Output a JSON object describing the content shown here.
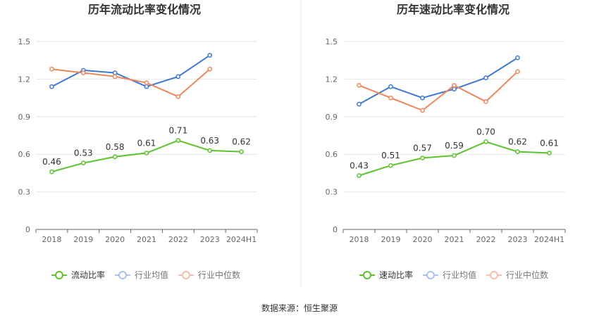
{
  "source_note": "数据来源：恒生聚源",
  "legend_current": "流动比率",
  "legend_quick": "速动比率",
  "legend_avg": "行业均值",
  "legend_median": "行业中位数",
  "colors": {
    "company": "#5bc42b",
    "industry_avg": "#3c78d8",
    "industry_median": "#f0855b",
    "grid": "#e6e6e6",
    "divider": "#e9e9e9"
  },
  "chart_data": [
    {
      "type": "line",
      "title": "历年流动比率变化情况",
      "categories": [
        "2018",
        "2019",
        "2020",
        "2021",
        "2022",
        "2023",
        "2024H1"
      ],
      "yticks": [
        "0",
        "0.3",
        "0.6",
        "0.9",
        "1.2",
        "1.5"
      ],
      "ylim": [
        0,
        1.5
      ],
      "grid": true,
      "legend_position": "bottom",
      "series": [
        {
          "name": "流动比率",
          "color": "#5bc42b",
          "labeled": true,
          "values": [
            0.46,
            0.53,
            0.58,
            0.61,
            0.71,
            0.63,
            0.62
          ],
          "labels": [
            "0.46",
            "0.53",
            "0.58",
            "0.61",
            "0.71",
            "0.63",
            "0.62"
          ]
        },
        {
          "name": "行业均值",
          "color": "#3c78d8",
          "labeled": false,
          "values": [
            1.14,
            1.27,
            1.25,
            1.14,
            1.22,
            1.39,
            null
          ]
        },
        {
          "name": "行业中位数",
          "color": "#f0855b",
          "labeled": false,
          "values": [
            1.28,
            1.25,
            1.22,
            1.17,
            1.06,
            1.28,
            null
          ]
        }
      ]
    },
    {
      "type": "line",
      "title": "历年速动比率变化情况",
      "categories": [
        "2018",
        "2019",
        "2020",
        "2021",
        "2022",
        "2023",
        "2024H1"
      ],
      "yticks": [
        "0",
        "0.3",
        "0.6",
        "0.9",
        "1.2",
        "1.5"
      ],
      "ylim": [
        0,
        1.5
      ],
      "grid": true,
      "legend_position": "bottom",
      "series": [
        {
          "name": "速动比率",
          "color": "#5bc42b",
          "labeled": true,
          "values": [
            0.43,
            0.51,
            0.57,
            0.59,
            0.7,
            0.62,
            0.61
          ],
          "labels": [
            "0.43",
            "0.51",
            "0.57",
            "0.59",
            "0.70",
            "0.62",
            "0.61"
          ]
        },
        {
          "name": "行业均值",
          "color": "#3c78d8",
          "labeled": false,
          "values": [
            1.0,
            1.14,
            1.05,
            1.12,
            1.21,
            1.37,
            null
          ]
        },
        {
          "name": "行业中位数",
          "color": "#f0855b",
          "labeled": false,
          "values": [
            1.15,
            1.05,
            0.95,
            1.15,
            1.02,
            1.26,
            null
          ]
        }
      ]
    }
  ]
}
